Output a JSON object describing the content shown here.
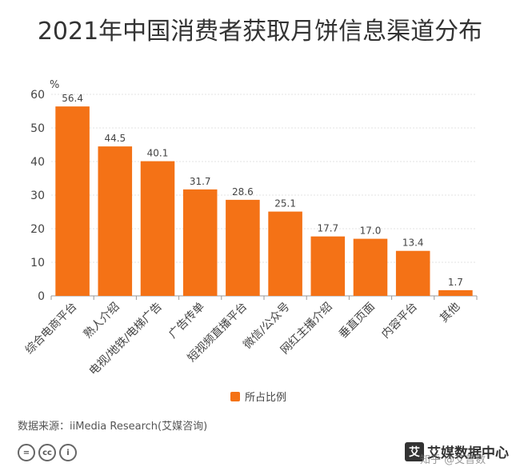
{
  "chart_data": {
    "type": "bar",
    "title": "2021年中国消费者获取月饼信息渠道分布",
    "ylabel": "%",
    "ylim": [
      0,
      60
    ],
    "yticks": [
      0,
      10,
      20,
      30,
      40,
      50,
      60
    ],
    "grid": true,
    "legend_position": "bottom-center",
    "categories": [
      "综合电商平台",
      "熟人介绍",
      "电视/地铁/电梯广告",
      "广告传单",
      "短视频直播平台",
      "微信/公众号",
      "网红主播介绍",
      "垂直页面",
      "内容平台",
      "其他"
    ],
    "series": [
      {
        "name": "所占比例",
        "values": [
          56.4,
          44.5,
          40.1,
          31.7,
          28.6,
          25.1,
          17.7,
          17.0,
          13.4,
          1.7
        ],
        "labels": [
          "56.4",
          "44.5",
          "40.1",
          "31.7",
          "28.6",
          "25.1",
          "17.7",
          "17.0",
          "13.4",
          "1.7"
        ]
      }
    ]
  },
  "colors": {
    "bar": "#F47216",
    "grid": "#E3E3E3",
    "axis": "#999999",
    "text": "#333333"
  },
  "footer": {
    "source": "数据来源：iiMedia Research(艾媒咨询)",
    "cc_icons": [
      "=",
      "cc",
      "i"
    ],
    "brand_mark": "艾",
    "brand_text": "艾媒数据中心",
    "watermark": "知乎 @艾普数"
  }
}
